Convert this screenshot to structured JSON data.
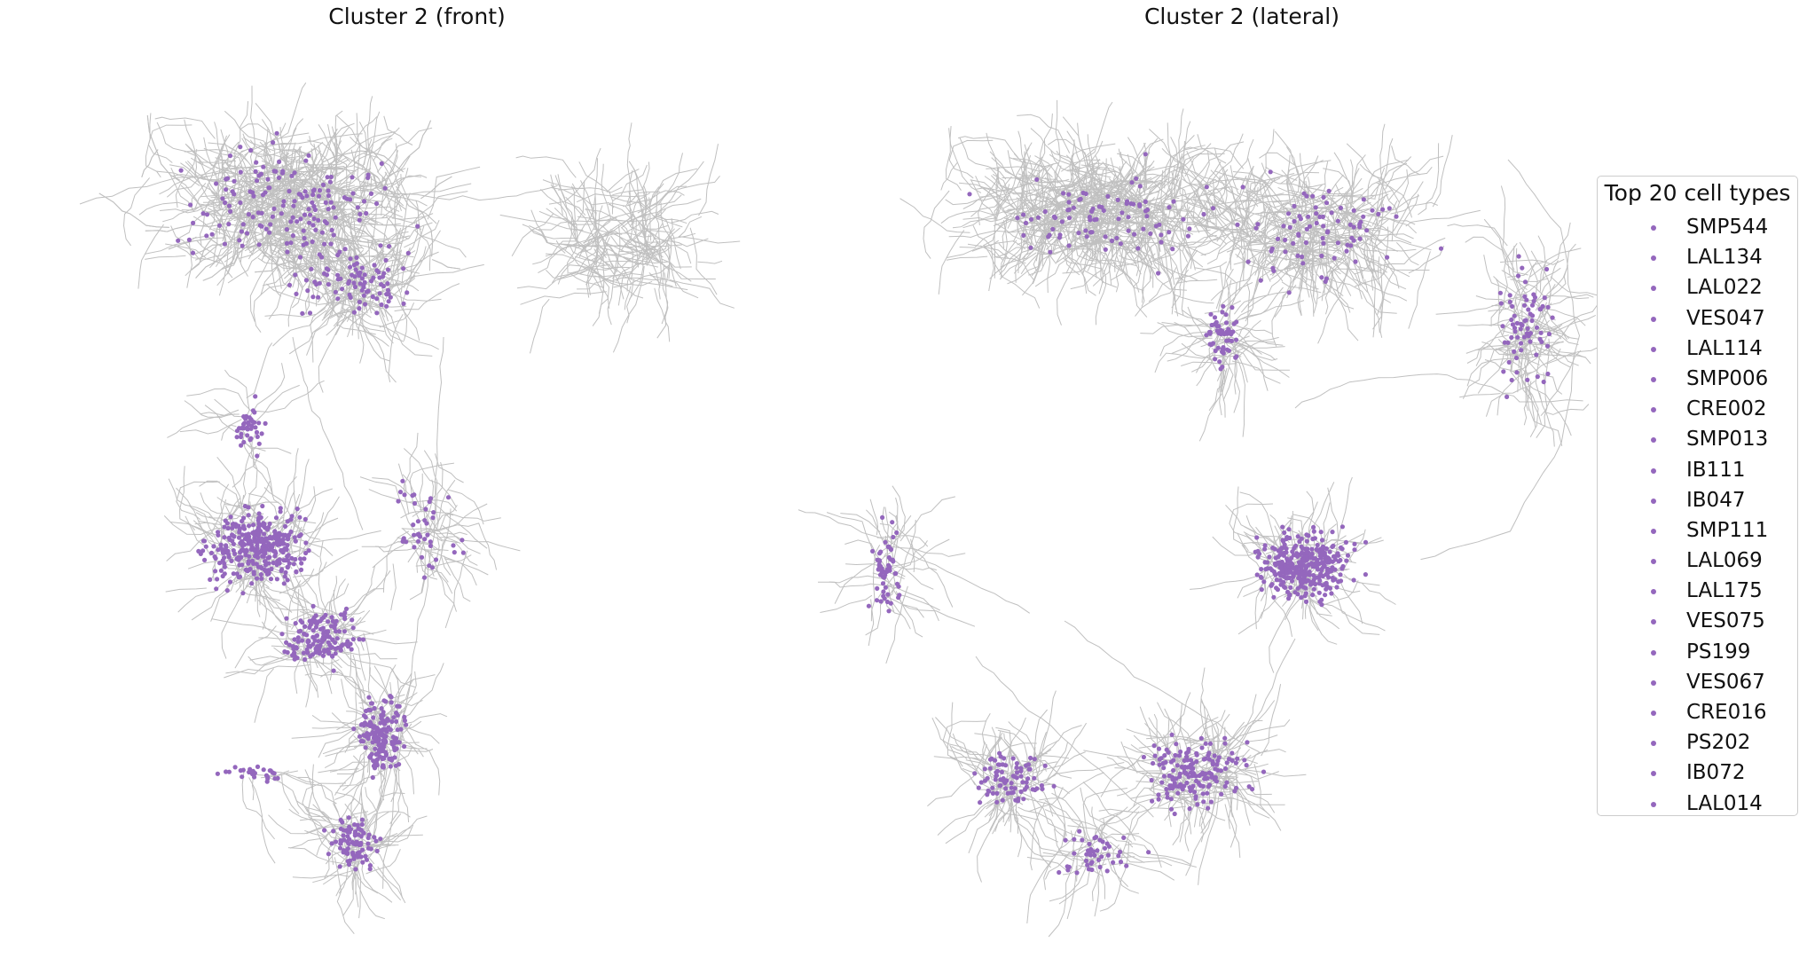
{
  "panels": [
    {
      "title": "Cluster 2 (front)"
    },
    {
      "title": "Cluster 2 (lateral)"
    }
  ],
  "legend": {
    "title": "Top 20 cell types",
    "items": [
      "SMP544",
      "LAL134",
      "LAL022",
      "VES047",
      "LAL114",
      "SMP006",
      "CRE002",
      "SMP013",
      "IB111",
      "IB047",
      "SMP111",
      "LAL069",
      "LAL175",
      "VES075",
      "PS199",
      "VES067",
      "CRE016",
      "PS202",
      "IB072",
      "LAL014"
    ]
  },
  "colors": {
    "synapse": "#9467bd",
    "neuron": "#c0c0c0"
  }
}
